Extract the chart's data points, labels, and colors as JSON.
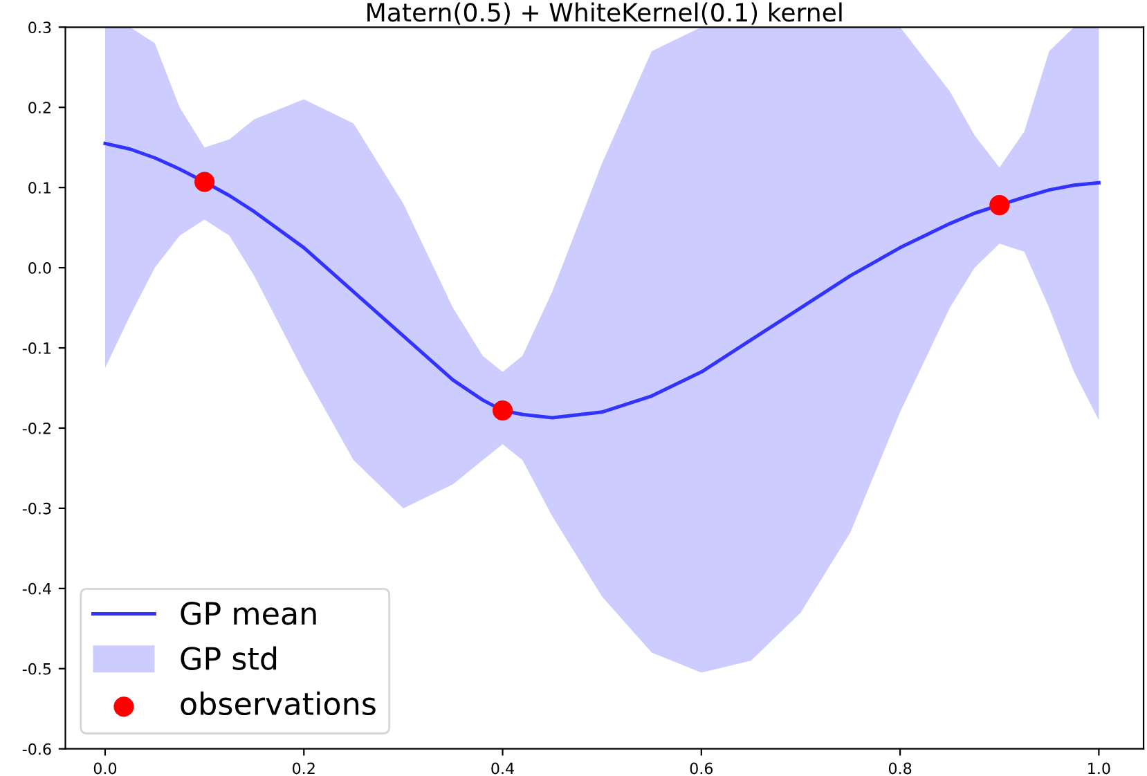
{
  "chart_data": {
    "type": "line",
    "title": "Matern(0.5) + WhiteKernel(0.1) kernel",
    "series": [
      {
        "name": "GP mean",
        "color": "#3333ff",
        "x": [
          0,
          0.025,
          0.05,
          0.075,
          0.1,
          0.125,
          0.15,
          0.2,
          0.25,
          0.3,
          0.35,
          0.38,
          0.4,
          0.42,
          0.45,
          0.5,
          0.55,
          0.6,
          0.65,
          0.7,
          0.75,
          0.8,
          0.85,
          0.875,
          0.9,
          0.925,
          0.95,
          0.975,
          1.0
        ],
        "values": [
          0.155,
          0.148,
          0.137,
          0.123,
          0.107,
          0.09,
          0.07,
          0.025,
          -0.03,
          -0.085,
          -0.14,
          -0.165,
          -0.178,
          -0.183,
          -0.187,
          -0.18,
          -0.16,
          -0.13,
          -0.09,
          -0.05,
          -0.01,
          0.025,
          0.055,
          0.068,
          0.078,
          0.088,
          0.097,
          0.103,
          0.106
        ],
        "upper": [
          0.3,
          0.3,
          0.28,
          0.2,
          0.15,
          0.16,
          0.185,
          0.21,
          0.18,
          0.08,
          -0.05,
          -0.11,
          -0.13,
          -0.11,
          -0.03,
          0.13,
          0.27,
          0.3,
          0.3,
          0.3,
          0.3,
          0.3,
          0.22,
          0.165,
          0.125,
          0.17,
          0.27,
          0.3,
          0.3
        ],
        "lower": [
          -0.125,
          -0.06,
          0.0,
          0.04,
          0.06,
          0.04,
          -0.01,
          -0.13,
          -0.24,
          -0.3,
          -0.27,
          -0.24,
          -0.22,
          -0.24,
          -0.31,
          -0.41,
          -0.48,
          -0.505,
          -0.49,
          -0.43,
          -0.33,
          -0.18,
          -0.05,
          0.0,
          0.03,
          0.02,
          -0.05,
          -0.13,
          -0.19
        ]
      },
      {
        "name": "observations",
        "type": "scatter",
        "color": "#ff0000",
        "x": [
          0.1,
          0.4,
          0.9
        ],
        "values": [
          0.107,
          -0.178,
          0.078
        ]
      }
    ],
    "annotations": [
      "GP std"
    ],
    "xlim": [
      -0.04,
      1.045
    ],
    "ylim": [
      -0.6,
      0.3
    ],
    "xticks": [
      {
        "value": 0,
        "label": "0.0"
      },
      0.2,
      0.4,
      0.6,
      0.8,
      {
        "value": 1,
        "label": "1.0"
      }
    ],
    "yticks": [
      {
        "value": -0.6,
        "label": "-0.6"
      },
      {
        "value": -0.5,
        "label": "-0.5"
      },
      {
        "value": -0.4,
        "label": "-0.4"
      },
      {
        "value": -0.3,
        "label": "-0.3"
      },
      {
        "value": -0.2,
        "label": "-0.2"
      },
      {
        "value": -0.1,
        "label": "-0.1"
      },
      {
        "value": 0,
        "label": "0.0"
      },
      0.1,
      0.2,
      0.3
    ],
    "legend": "lower left",
    "grid": false
  }
}
